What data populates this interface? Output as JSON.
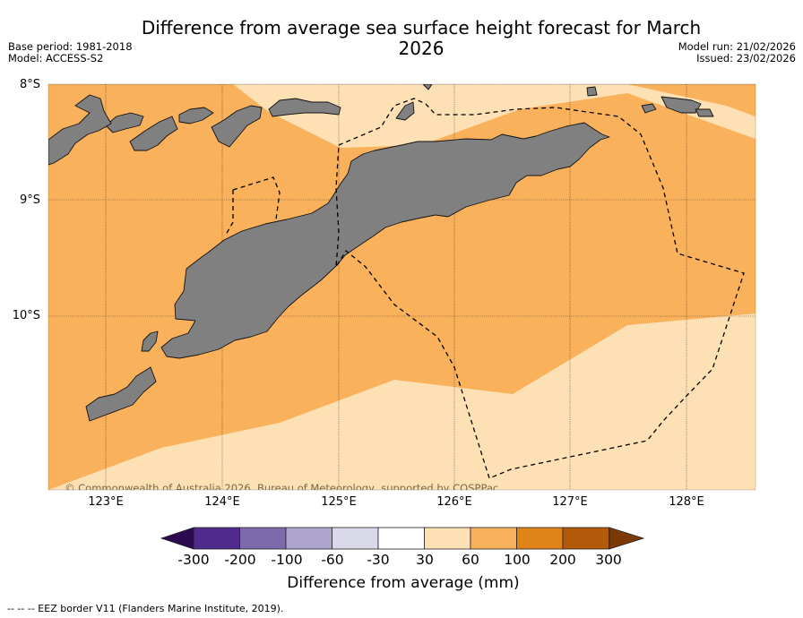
{
  "title": "Difference from average sea surface height forecast for March 2026",
  "meta_left": [
    "Base period: 1981-2018",
    "Model: ACCESS-S2"
  ],
  "meta_right": [
    "Model run: 21/02/2026",
    "Issued: 23/02/2026"
  ],
  "map": {
    "latitude_labels": [
      "8°S",
      "9°S",
      "10°S"
    ],
    "longitude_labels": [
      "123°E",
      "124°E",
      "125°E",
      "126°E",
      "127°E",
      "128°E"
    ],
    "copyright": "© Commonwealth of Australia 2026, Bureau of Meteorology, supported by COSPPac"
  },
  "colorbar": {
    "title": "Difference from average (mm)",
    "tick_labels": [
      "-300",
      "-200",
      "-100",
      "-60",
      "-30",
      "30",
      "60",
      "100",
      "200",
      "300"
    ],
    "colors": [
      "#502a8c",
      "#7d6aac",
      "#aea5cf",
      "#d9d9ea",
      "#ffffff",
      "#fee0b5",
      "#fab15c",
      "#e08418",
      "#b25a0a"
    ],
    "under_color": "#2d0a4f",
    "over_color": "#7b3a05"
  },
  "legend_note": "--  --  -- EEZ border V11 (Flanders Marine Institute, 2019).",
  "colors": {
    "high_anomaly": "#fab15c",
    "low_anomaly": "#fee0b5",
    "land": "#808080"
  }
}
